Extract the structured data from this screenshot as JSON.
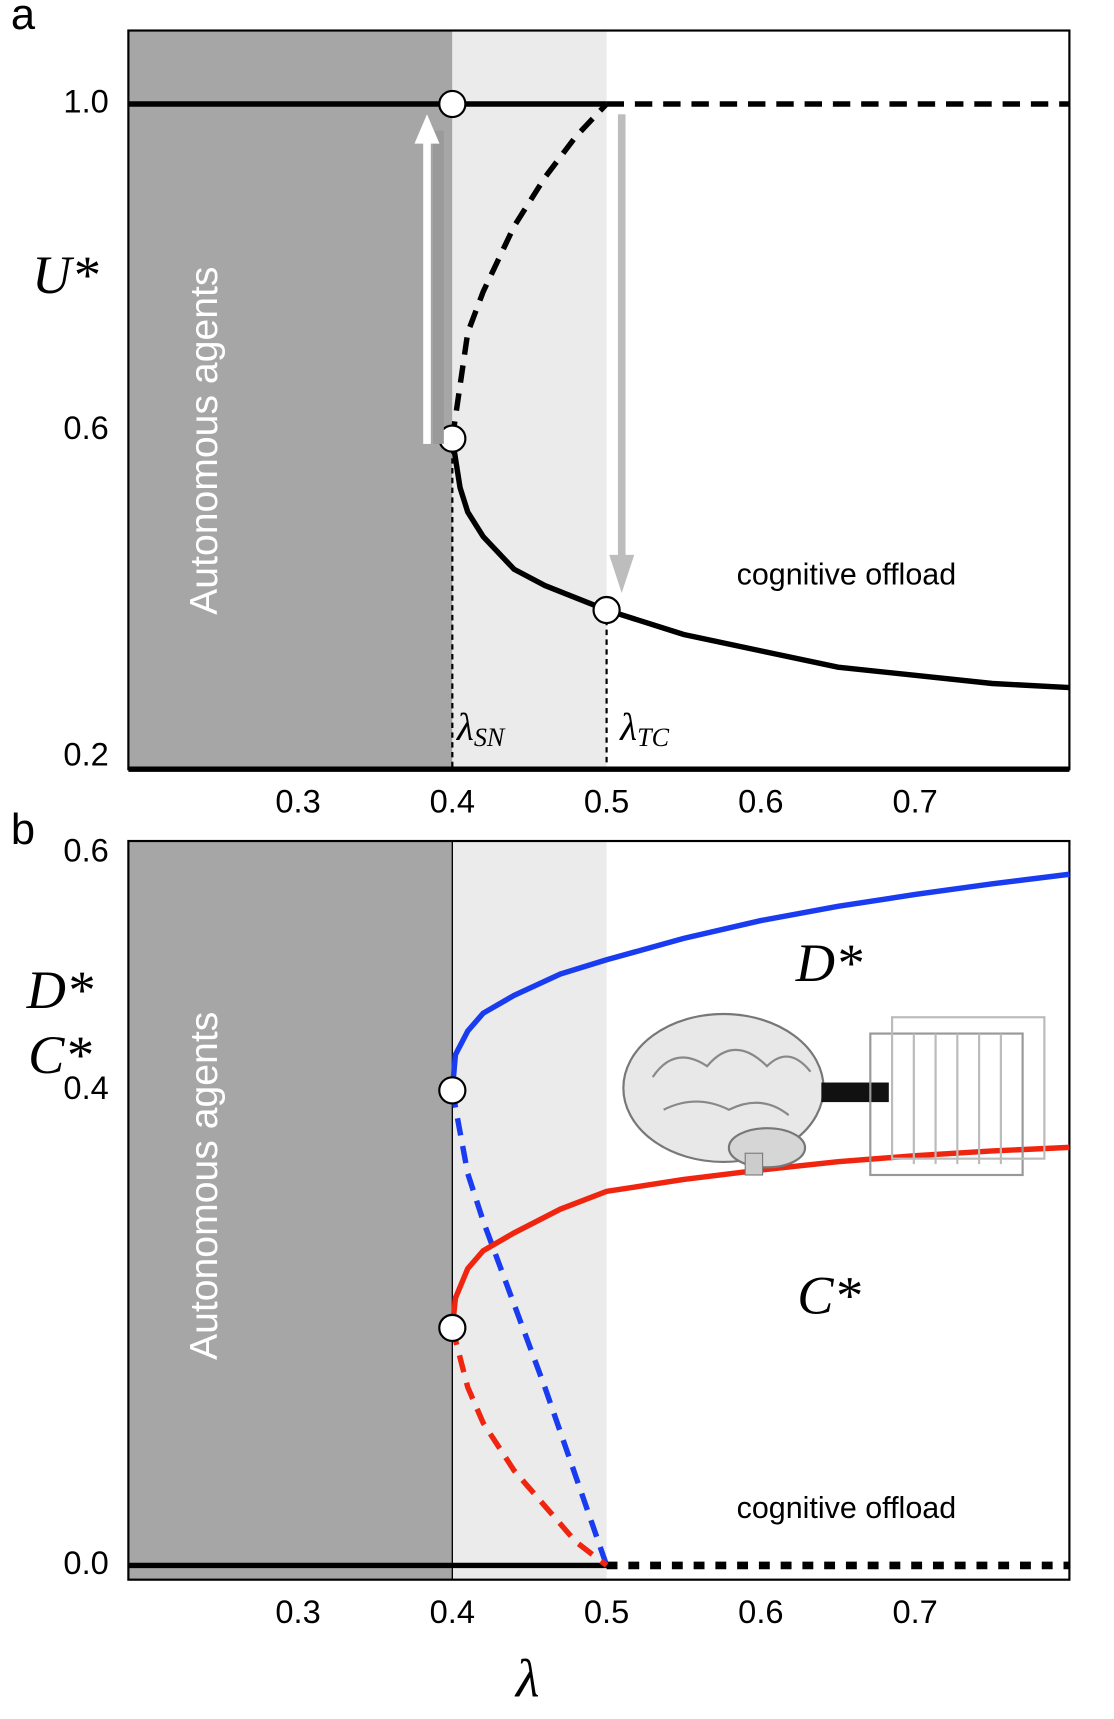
{
  "chart_data": [
    {
      "type": "line",
      "panel_label": "a",
      "y_label": "U*",
      "annotations": [
        "Autonomous agents",
        "cognitive offload"
      ],
      "lambda_labels": [
        {
          "symbol": "λ",
          "sub": "SN"
        },
        {
          "symbol": "λ",
          "sub": "TC"
        }
      ],
      "xlim": [
        0.19,
        0.8
      ],
      "xticks": [
        0.3,
        0.4,
        0.5,
        0.6,
        0.7
      ],
      "ylim": [
        0.185,
        1.09
      ],
      "yticks": [
        0.2,
        0.6,
        {
          "value": 1,
          "label": "1.0"
        }
      ],
      "bands": [
        {
          "from": 0.19,
          "to": 0.4,
          "color": "#a6a6a6"
        },
        {
          "from": 0.4,
          "to": 0.5,
          "color": "#ebebeb"
        }
      ],
      "reference_lines": [
        0.4,
        0.5
      ],
      "reference_style": "dotted",
      "series": [
        {
          "color": "#000000",
          "style": "solid",
          "x": [
            0.19,
            0.5
          ],
          "values": [
            1,
            1
          ]
        },
        {
          "color": "#000000",
          "style": "dashed",
          "x": [
            0.5,
            0.8
          ],
          "values": [
            1,
            1
          ]
        },
        {
          "color": "#000000",
          "style": "dashed",
          "x": [
            0.4,
            0.41,
            0.42,
            0.44,
            0.46,
            0.48,
            0.5
          ],
          "values": [
            0.59,
            0.72,
            0.77,
            0.85,
            0.91,
            0.96,
            1
          ]
        },
        {
          "color": "#000000",
          "style": "solid",
          "x": [
            0.4,
            0.405,
            0.41,
            0.42,
            0.44,
            0.46,
            0.5,
            0.55,
            0.6,
            0.65,
            0.7,
            0.75,
            0.8
          ],
          "values": [
            0.59,
            0.53,
            0.5,
            0.47,
            0.43,
            0.41,
            0.38,
            0.35,
            0.33,
            0.31,
            0.3,
            0.29,
            0.285
          ]
        }
      ],
      "points": {
        "x": [
          0.4,
          0.4,
          0.5
        ],
        "values": [
          1,
          0.59,
          0.38
        ]
      }
    },
    {
      "type": "line",
      "panel_label": "b",
      "y_label": [
        "D*",
        "C*"
      ],
      "x_label": "λ",
      "annotations": [
        "Autonomous agents",
        "cognitive offload",
        "D*",
        "C*"
      ],
      "xlim": [
        0.19,
        0.8
      ],
      "xticks": [
        0.3,
        0.4,
        0.5,
        0.6,
        0.7
      ],
      "ylim": [
        -0.012,
        0.61
      ],
      "yticks": [
        {
          "value": 0,
          "label": "0.0"
        },
        0.4,
        0.6
      ],
      "bands": [
        {
          "from": 0.19,
          "to": 0.4,
          "color": "#a6a6a6"
        },
        {
          "from": 0.4,
          "to": 0.5,
          "color": "#ebebeb"
        }
      ],
      "reference_lines": [
        0.4
      ],
      "reference_style": "solid",
      "series": [
        {
          "color": "#000000",
          "style": "solid",
          "x": [
            0.19,
            0.5
          ],
          "values": [
            0,
            0
          ]
        },
        {
          "color": "#000000",
          "style": "dotted",
          "x": [
            0.5,
            0.8
          ],
          "values": [
            0,
            0
          ]
        },
        {
          "color": "#1a3cf0",
          "style": "solid",
          "x": [
            0.4,
            0.402,
            0.41,
            0.42,
            0.44,
            0.47,
            0.5,
            0.55,
            0.6,
            0.65,
            0.7,
            0.75,
            0.8
          ],
          "values": [
            0.4,
            0.43,
            0.45,
            0.465,
            0.48,
            0.498,
            0.51,
            0.528,
            0.543,
            0.555,
            0.565,
            0.574,
            0.582
          ]
        },
        {
          "color": "#1a3cf0",
          "style": "dashed",
          "x": [
            0.4,
            0.41,
            0.42,
            0.44,
            0.46,
            0.48,
            0.5
          ],
          "values": [
            0.4,
            0.33,
            0.29,
            0.22,
            0.15,
            0.075,
            0
          ]
        },
        {
          "color": "#f0250f",
          "style": "solid",
          "x": [
            0.4,
            0.402,
            0.41,
            0.42,
            0.44,
            0.47,
            0.5,
            0.55,
            0.6,
            0.65,
            0.7,
            0.75,
            0.8
          ],
          "values": [
            0.2,
            0.225,
            0.25,
            0.265,
            0.28,
            0.3,
            0.315,
            0.325,
            0.333,
            0.34,
            0.345,
            0.349,
            0.352
          ]
        },
        {
          "color": "#f0250f",
          "style": "dashed",
          "x": [
            0.4,
            0.41,
            0.42,
            0.44,
            0.46,
            0.48,
            0.5
          ],
          "values": [
            0.2,
            0.15,
            0.12,
            0.08,
            0.05,
            0.02,
            0
          ]
        }
      ],
      "points": {
        "x": [
          0.4,
          0.4
        ],
        "values": [
          0.4,
          0.2
        ]
      }
    }
  ]
}
